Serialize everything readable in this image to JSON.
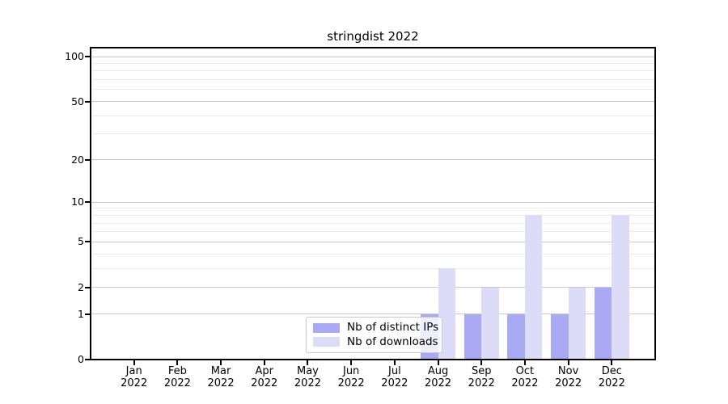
{
  "title": "stringdist 2022",
  "chart_data": {
    "type": "bar",
    "title": "stringdist 2022",
    "categories": [
      "Jan",
      "Feb",
      "Mar",
      "Apr",
      "May",
      "Jun",
      "Jul",
      "Aug",
      "Sep",
      "Oct",
      "Nov",
      "Dec"
    ],
    "year_label": "2022",
    "series": [
      {
        "name": "Nb of distinct IPs",
        "color": "#a9a9f4",
        "values": [
          0,
          0,
          0,
          0,
          0,
          0,
          0,
          1,
          1,
          1,
          1,
          2
        ]
      },
      {
        "name": "Nb of downloads",
        "color": "#dcdcf8",
        "values": [
          0,
          0,
          0,
          0,
          0,
          0,
          0,
          3,
          2,
          8,
          2,
          8
        ]
      }
    ],
    "yticks": [
      0,
      1,
      2,
      5,
      10,
      20,
      50,
      100
    ],
    "minor_gridlines": [
      3,
      4,
      6,
      7,
      8,
      9,
      30,
      40,
      60,
      70,
      80,
      90
    ],
    "scale": "log1p",
    "ylim": [
      0,
      100
    ],
    "xlabel": "",
    "ylabel": "",
    "grid": "horizontal",
    "legend_position": "inside-bottom-center"
  },
  "colors": {
    "major_gridline": "#c8c8c8",
    "minor_gridline": "#ebebeb",
    "axis": "#000000"
  }
}
